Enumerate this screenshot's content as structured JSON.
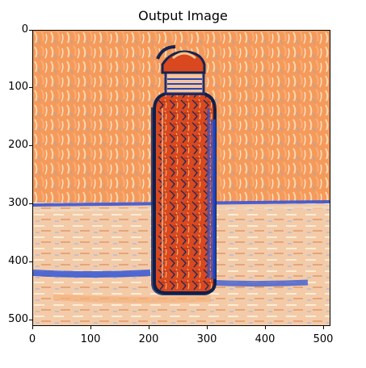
{
  "figure": {
    "title": "Output Image",
    "image": {
      "description_icon": "stylized-bottle-image-icon",
      "palette": {
        "background_light": "#f6c9a1",
        "background_orange": "#f59a5b",
        "stroke_blue": "#1f4fd8",
        "deep_red": "#c8351f",
        "dark_navy": "#15244f",
        "cream": "#fde7c4",
        "mint": "#b7d8a8"
      }
    },
    "x_axis": {
      "ticks": [
        "0",
        "100",
        "200",
        "300",
        "400",
        "500"
      ],
      "tick_values": [
        0,
        100,
        200,
        300,
        400,
        500
      ],
      "range": [
        0,
        512
      ]
    },
    "y_axis": {
      "ticks": [
        "0",
        "100",
        "200",
        "300",
        "400",
        "500"
      ],
      "tick_values": [
        0,
        100,
        200,
        300,
        400,
        500
      ],
      "range": [
        0,
        512
      ]
    }
  }
}
